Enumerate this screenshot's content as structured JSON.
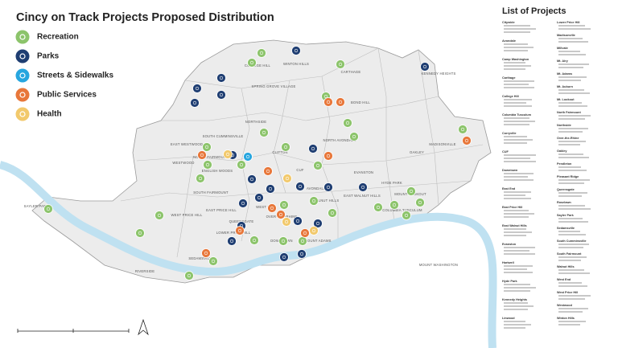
{
  "title": "Cincy on Track Projects Proposed Distribution",
  "legend": [
    "Recreation",
    "Parks",
    "Streets & Sidewalks",
    "Public Services",
    "Health"
  ],
  "neighborhoods": [
    "COLLEGE HILL",
    "WINTON HILLS",
    "CARTHAGE",
    "BOND HILL",
    "KENNEDY HEIGHTS",
    "SPRING GROVE VILLAGE",
    "NORTHSIDE",
    "SOUTH CUMMINSVILLE",
    "CLIFTON",
    "WESTWOOD",
    "EAST WESTWOOD",
    "NORTH FAIRMOUNT",
    "ENGLISH WOODS",
    "SOUTH FAIRMOUNT",
    "CUF",
    "NORTH AVONDALE",
    "AVONDALE",
    "EVANSTON",
    "OAKLEY",
    "HYDE PARK",
    "MADISONVILLE",
    "WEST PRICE HILL",
    "EAST PRICE HILL",
    "LOWER PRICE HILL",
    "WEST END",
    "QUEENSGATE",
    "OVER-THE-RHINE",
    "DOWNTOWN",
    "MOUNT ADAMS",
    "WALNUT HILLS",
    "EAST WALNUT HILLS",
    "MOUNT LOOKOUT",
    "COLUMBIA TUSCULUM",
    "MOUNT WASHINGTON",
    "SAYLER PARK",
    "RIVERSIDE",
    "SEDAMSVILLE"
  ],
  "list": {
    "title": "List of Projects",
    "left": [
      "Citywide",
      "Avondale",
      "Camp Washington",
      "Carthage",
      "College Hill",
      "Columbia Tusculum",
      "Corryville",
      "CUF",
      "Downtown",
      "East End",
      "East Price Hill",
      "East Walnut Hills",
      "Evanston",
      "Hartwell",
      "Hyde Park",
      "Kennedy Heights",
      "Linwood"
    ],
    "right": [
      "Lower Price Hill",
      "Madisonville",
      "Millvale",
      "Mt. Airy",
      "Mt. Adams",
      "Mt. Auburn",
      "Mt. Lookout",
      "North Fairmount",
      "Northside",
      "Over-the-Rhine",
      "Oakley",
      "Pendleton",
      "Pleasant Ridge",
      "Queensgate",
      "Roselawn",
      "Sayler Park",
      "Sedamsville",
      "South Cumminsville",
      "South Fairmount",
      "Walnut Hills",
      "West End",
      "West Price Hill",
      "Westwood",
      "Winton Hills"
    ]
  }
}
